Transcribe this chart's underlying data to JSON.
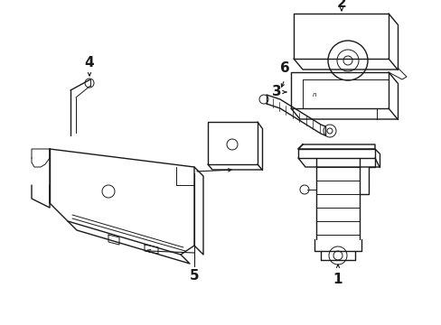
{
  "bg_color": "#ffffff",
  "line_color": "#1a1a1a",
  "lw": 1.0,
  "tlw": 0.7,
  "fig_width": 4.89,
  "fig_height": 3.6,
  "dpi": 100
}
